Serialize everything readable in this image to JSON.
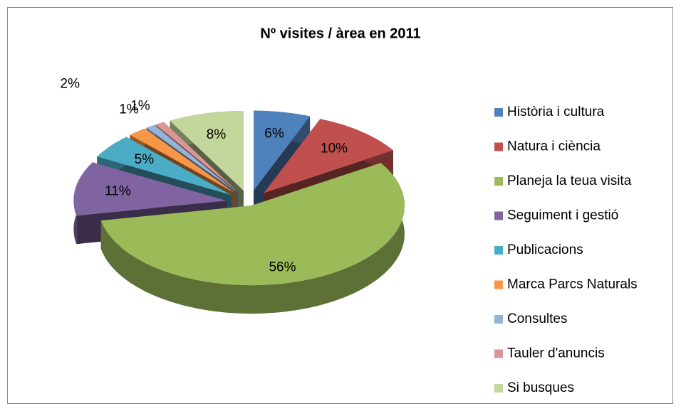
{
  "chart_data": {
    "type": "pie3d",
    "title": "Nº visites / àrea en 2011",
    "categories": [
      "Història i cultura",
      "Natura i ciència",
      "Planeja la teua visita",
      "Seguiment i gestió",
      "Publicacions",
      "Marca Parcs Naturals",
      "Consultes",
      "Tauler d'anuncis",
      "Si busques"
    ],
    "values": [
      6,
      10,
      56,
      11,
      5,
      2,
      1,
      1,
      8
    ],
    "value_labels": [
      "6%",
      "10%",
      "56%",
      "11%",
      "5%",
      "2%",
      "1%",
      "1%",
      "8%"
    ],
    "colors": [
      "#4f81bd",
      "#c0504d",
      "#9bbb59",
      "#8064a2",
      "#4bacc6",
      "#f79646",
      "#95b3d7",
      "#d99694",
      "#c3d69b"
    ],
    "legend": "right"
  }
}
